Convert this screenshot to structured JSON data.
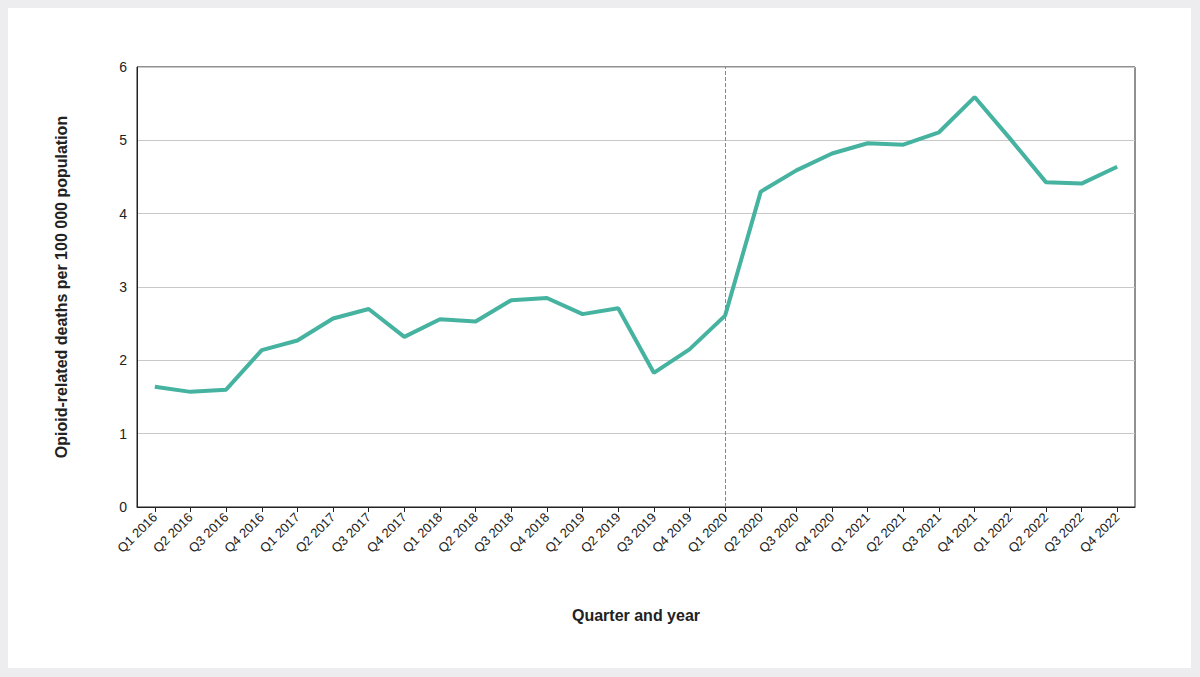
{
  "chart_data": {
    "type": "line",
    "x_label": "Quarter and year",
    "y_label": "Opioid-related deaths per 100 000 population",
    "categories": [
      "Q1 2016",
      "Q2 2016",
      "Q3 2016",
      "Q4 2016",
      "Q1 2017",
      "Q2 2017",
      "Q3 2017",
      "Q4 2017",
      "Q1 2018",
      "Q2 2018",
      "Q3 2018",
      "Q4 2018",
      "Q1 2019",
      "Q2 2019",
      "Q3 2019",
      "Q4 2019",
      "Q1 2020",
      "Q2 2020",
      "Q3 2020",
      "Q4 2020",
      "Q1 2021",
      "Q2 2021",
      "Q3 2021",
      "Q4 2021",
      "Q1 2022",
      "Q2 2022",
      "Q3 2022",
      "Q4 2022"
    ],
    "values": [
      1.64,
      1.57,
      1.6,
      2.14,
      2.27,
      2.57,
      2.7,
      2.32,
      2.56,
      2.53,
      2.82,
      2.85,
      2.63,
      2.71,
      1.83,
      2.15,
      2.61,
      4.3,
      4.59,
      4.82,
      4.96,
      4.94,
      5.11,
      5.59,
      5.02,
      4.43,
      4.41,
      4.64
    ],
    "color": "#45b3a0",
    "ylim": [
      0,
      6
    ],
    "yticks": [
      0,
      1,
      2,
      3,
      4,
      5,
      6
    ],
    "grid": true,
    "reference_line": {
      "x": "Q1 2020",
      "line_style": "dashed"
    }
  }
}
